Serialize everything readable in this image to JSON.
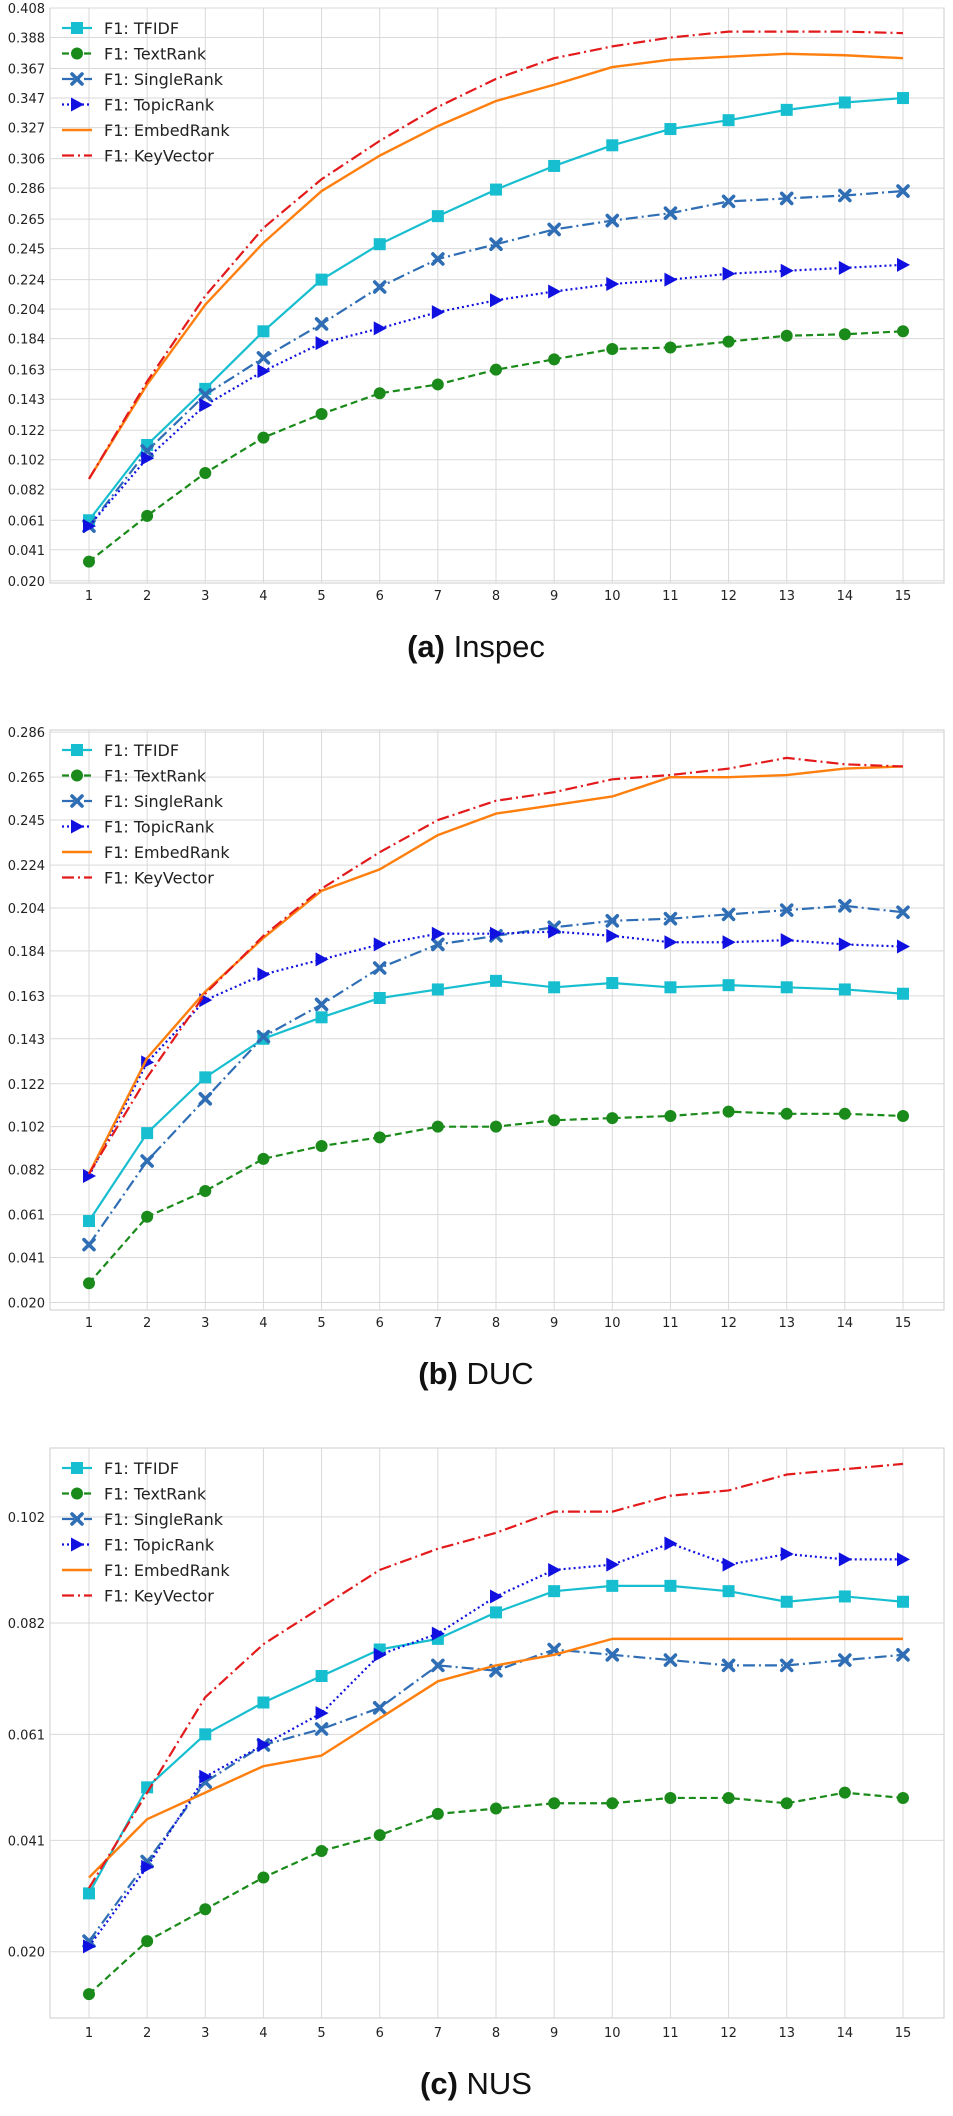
{
  "colors": {
    "grid": "#d9d9d9",
    "frame": "#cccccc",
    "tfidf": "#17becf",
    "textrank": "#1a8a1a",
    "singlerank": "#2f6eb5",
    "topicrank": "#1010e0",
    "embedrank": "#ff7f0e",
    "keyvector": "#e31a1c"
  },
  "chart_data": [
    {
      "type": "line",
      "caption_letter": "(a)",
      "caption_name": "Inspec",
      "x": [
        1,
        2,
        3,
        4,
        5,
        6,
        7,
        8,
        9,
        10,
        11,
        12,
        13,
        14,
        15
      ],
      "x_tick_labels": [
        "1",
        "2",
        "3",
        "4",
        "5",
        "6",
        "7",
        "8",
        "9",
        "10",
        "11",
        "12",
        "13",
        "14",
        "15"
      ],
      "y_tick_values": [
        0.02,
        0.041,
        0.061,
        0.082,
        0.102,
        0.122,
        0.143,
        0.163,
        0.184,
        0.204,
        0.224,
        0.245,
        0.265,
        0.286,
        0.306,
        0.327,
        0.347,
        0.367,
        0.388,
        0.408
      ],
      "y_tick_labels": [
        "0.020",
        "0.041",
        "0.061",
        "0.082",
        "0.102",
        "0.122",
        "0.143",
        "0.163",
        "0.184",
        "0.204",
        "0.224",
        "0.245",
        "0.265",
        "0.286",
        "0.306",
        "0.327",
        "0.347",
        "0.367",
        "0.388",
        "0.408"
      ],
      "ylim": [
        0.0185,
        0.408
      ],
      "legend_position": "top-left",
      "grid": true,
      "series": [
        {
          "name": "F1: TFIDF",
          "key": "tfidf",
          "values": [
            0.061,
            0.112,
            0.15,
            0.189,
            0.224,
            0.248,
            0.267,
            0.285,
            0.301,
            0.315,
            0.326,
            0.332,
            0.339,
            0.344,
            0.347
          ]
        },
        {
          "name": "F1: TextRank",
          "key": "textrank",
          "values": [
            0.033,
            0.064,
            0.093,
            0.117,
            0.133,
            0.147,
            0.153,
            0.163,
            0.17,
            0.177,
            0.178,
            0.182,
            0.186,
            0.187,
            0.189
          ]
        },
        {
          "name": "F1: SingleRank",
          "key": "singlerank",
          "values": [
            0.057,
            0.108,
            0.146,
            0.171,
            0.194,
            0.219,
            0.238,
            0.248,
            0.258,
            0.264,
            0.269,
            0.277,
            0.279,
            0.281,
            0.284
          ]
        },
        {
          "name": "F1: TopicRank",
          "key": "topicrank",
          "values": [
            0.057,
            0.103,
            0.139,
            0.162,
            0.181,
            0.191,
            0.202,
            0.21,
            0.216,
            0.221,
            0.224,
            0.228,
            0.23,
            0.232,
            0.234
          ]
        },
        {
          "name": "F1: EmbedRank",
          "key": "embedrank",
          "values": [
            0.089,
            0.153,
            0.207,
            0.249,
            0.284,
            0.308,
            0.328,
            0.345,
            0.356,
            0.368,
            0.373,
            0.375,
            0.377,
            0.376,
            0.374
          ]
        },
        {
          "name": "F1: KeyVector",
          "key": "keyvector",
          "values": [
            0.089,
            0.155,
            0.213,
            0.259,
            0.292,
            0.318,
            0.341,
            0.36,
            0.374,
            0.382,
            0.388,
            0.392,
            0.392,
            0.392,
            0.391
          ]
        }
      ]
    },
    {
      "type": "line",
      "caption_letter": "(b)",
      "caption_name": "DUC",
      "x": [
        1,
        2,
        3,
        4,
        5,
        6,
        7,
        8,
        9,
        10,
        11,
        12,
        13,
        14,
        15
      ],
      "x_tick_labels": [
        "1",
        "2",
        "3",
        "4",
        "5",
        "6",
        "7",
        "8",
        "9",
        "10",
        "11",
        "12",
        "13",
        "14",
        "15"
      ],
      "y_tick_values": [
        0.02,
        0.041,
        0.061,
        0.082,
        0.102,
        0.122,
        0.143,
        0.163,
        0.184,
        0.204,
        0.224,
        0.245,
        0.265,
        0.286
      ],
      "y_tick_labels": [
        "0.020",
        "0.041",
        "0.061",
        "0.082",
        "0.102",
        "0.122",
        "0.143",
        "0.163",
        "0.184",
        "0.204",
        "0.224",
        "0.245",
        "0.265",
        "0.286"
      ],
      "ylim": [
        0.0165,
        0.287
      ],
      "legend_position": "top-left",
      "grid": true,
      "series": [
        {
          "name": "F1: TFIDF",
          "key": "tfidf",
          "values": [
            0.058,
            0.099,
            0.125,
            0.143,
            0.153,
            0.162,
            0.166,
            0.17,
            0.167,
            0.169,
            0.167,
            0.168,
            0.167,
            0.166,
            0.164
          ]
        },
        {
          "name": "F1: TextRank",
          "key": "textrank",
          "values": [
            0.029,
            0.06,
            0.072,
            0.087,
            0.093,
            0.097,
            0.102,
            0.102,
            0.105,
            0.106,
            0.107,
            0.109,
            0.108,
            0.108,
            0.107
          ]
        },
        {
          "name": "F1: SingleRank",
          "key": "singlerank",
          "values": [
            0.047,
            0.086,
            0.115,
            0.144,
            0.159,
            0.176,
            0.187,
            0.191,
            0.195,
            0.198,
            0.199,
            0.201,
            0.203,
            0.205,
            0.202
          ]
        },
        {
          "name": "F1: TopicRank",
          "key": "topicrank",
          "values": [
            0.079,
            0.132,
            0.161,
            0.173,
            0.18,
            0.187,
            0.192,
            0.192,
            0.193,
            0.191,
            0.188,
            0.188,
            0.189,
            0.187,
            0.186
          ]
        },
        {
          "name": "F1: EmbedRank",
          "key": "embedrank",
          "values": [
            0.08,
            0.134,
            0.165,
            0.19,
            0.212,
            0.222,
            0.238,
            0.248,
            0.252,
            0.256,
            0.265,
            0.265,
            0.266,
            0.269,
            0.27
          ]
        },
        {
          "name": "F1: KeyVector",
          "key": "keyvector",
          "values": [
            0.08,
            0.125,
            0.164,
            0.191,
            0.213,
            0.23,
            0.245,
            0.254,
            0.258,
            0.264,
            0.266,
            0.269,
            0.274,
            0.271,
            0.27
          ]
        }
      ]
    },
    {
      "type": "line",
      "caption_letter": "(c)",
      "caption_name": "NUS",
      "x": [
        1,
        2,
        3,
        4,
        5,
        6,
        7,
        8,
        9,
        10,
        11,
        12,
        13,
        14,
        15
      ],
      "x_tick_labels": [
        "1",
        "2",
        "3",
        "4",
        "5",
        "6",
        "7",
        "8",
        "9",
        "10",
        "11",
        "12",
        "13",
        "14",
        "15"
      ],
      "y_tick_values": [
        0.02,
        0.041,
        0.061,
        0.082,
        0.102
      ],
      "y_tick_labels": [
        "0.020",
        "0.041",
        "0.061",
        "0.082",
        "0.102"
      ],
      "ylim": [
        0.0075,
        0.115
      ],
      "legend_position": "top-left",
      "grid": true,
      "series": [
        {
          "name": "F1: TFIDF",
          "key": "tfidf",
          "values": [
            0.031,
            0.051,
            0.061,
            0.067,
            0.072,
            0.077,
            0.079,
            0.084,
            0.088,
            0.089,
            0.089,
            0.088,
            0.086,
            0.087,
            0.086
          ]
        },
        {
          "name": "F1: TextRank",
          "key": "textrank",
          "values": [
            0.012,
            0.022,
            0.028,
            0.034,
            0.039,
            0.042,
            0.046,
            0.047,
            0.048,
            0.048,
            0.049,
            0.049,
            0.048,
            0.05,
            0.049
          ]
        },
        {
          "name": "F1: SingleRank",
          "key": "singlerank",
          "values": [
            0.022,
            0.037,
            0.052,
            0.059,
            0.062,
            0.066,
            0.074,
            0.073,
            0.077,
            0.076,
            0.075,
            0.074,
            0.074,
            0.075,
            0.076
          ]
        },
        {
          "name": "F1: TopicRank",
          "key": "topicrank",
          "values": [
            0.021,
            0.036,
            0.053,
            0.059,
            0.065,
            0.076,
            0.08,
            0.087,
            0.092,
            0.093,
            0.097,
            0.093,
            0.095,
            0.094,
            0.094
          ]
        },
        {
          "name": "F1: EmbedRank",
          "key": "embedrank",
          "values": [
            0.034,
            0.045,
            0.05,
            0.055,
            0.057,
            0.064,
            0.071,
            0.074,
            0.076,
            0.079,
            0.079,
            0.079,
            0.079,
            0.079,
            0.079
          ]
        },
        {
          "name": "F1: KeyVector",
          "key": "keyvector",
          "values": [
            0.032,
            0.05,
            0.068,
            0.078,
            0.085,
            0.092,
            0.096,
            0.099,
            0.103,
            0.103,
            0.106,
            0.107,
            0.11,
            0.111,
            0.112
          ]
        }
      ]
    }
  ]
}
